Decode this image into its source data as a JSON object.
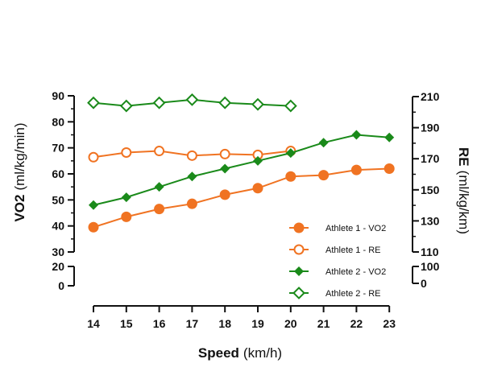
{
  "chart_data": {
    "type": "line",
    "x": [
      14,
      15,
      16,
      17,
      18,
      19,
      20,
      21,
      22,
      23
    ],
    "xlabel": "Speed",
    "xlabel_unit": "(km/h)",
    "ylabel_left": "VO2",
    "ylabel_left_unit": "(ml/kg/min)",
    "ylabel_right": "RE",
    "ylabel_right_unit": "(ml/kg/km)",
    "left_axis": {
      "broken": true,
      "lower_ticks": [
        "0",
        "20"
      ],
      "upper_ticks": [
        "30",
        "40",
        "50",
        "60",
        "70",
        "80",
        "90"
      ],
      "upper_range": [
        30,
        90
      ]
    },
    "right_axis": {
      "broken": true,
      "lower_ticks": [
        "0",
        "100"
      ],
      "upper_ticks": [
        "110",
        "130",
        "150",
        "170",
        "190",
        "210"
      ],
      "upper_range": [
        110,
        210
      ]
    },
    "x_ticks": [
      "14",
      "15",
      "16",
      "17",
      "18",
      "19",
      "20",
      "21",
      "22",
      "23"
    ],
    "legend_position": "bottom-right",
    "series": [
      {
        "name": "Athlete 1 - VO2",
        "axis": "left",
        "color": "#f07322",
        "marker": "circle-filled",
        "x": [
          14,
          15,
          16,
          17,
          18,
          19,
          20,
          21,
          22,
          23
        ],
        "values": [
          39.5,
          43.5,
          46.5,
          48.5,
          52,
          54.5,
          59,
          59.5,
          61.5,
          62
        ]
      },
      {
        "name": "Athlete 1 - RE",
        "axis": "right",
        "color": "#f07322",
        "marker": "circle-open",
        "x": [
          14,
          15,
          16,
          17,
          18,
          19,
          20
        ],
        "values": [
          171,
          174,
          175,
          172,
          173,
          172.5,
          175
        ]
      },
      {
        "name": "Athlete 2 - VO2",
        "axis": "left",
        "color": "#1a8a1a",
        "marker": "diamond-filled",
        "x": [
          14,
          15,
          16,
          17,
          18,
          19,
          20,
          21,
          22,
          23
        ],
        "values": [
          48,
          51,
          55,
          59,
          62,
          65,
          68,
          72,
          75,
          74
        ]
      },
      {
        "name": "Athlete 2 - RE",
        "axis": "right",
        "color": "#1a8a1a",
        "marker": "diamond-open",
        "x": [
          14,
          15,
          16,
          17,
          18,
          19,
          20
        ],
        "values": [
          206,
          204,
          206,
          208,
          206,
          205,
          204
        ]
      }
    ]
  }
}
